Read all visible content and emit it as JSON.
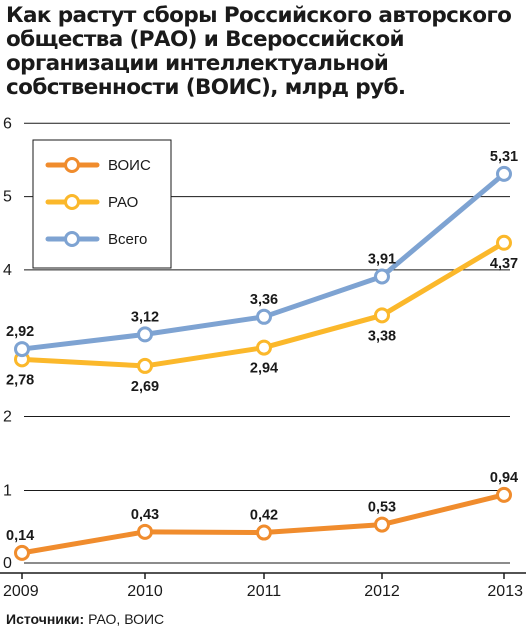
{
  "chart_data": {
    "type": "line",
    "title": "Как растут сборы Российского авторского общества (РАО) и Всероссийской организации интеллектуальной собственности (ВОИС), млрд руб.",
    "x": [
      "2009",
      "2010",
      "2011",
      "2012",
      "2013"
    ],
    "ylim": [
      0,
      6
    ],
    "yticks": [
      "0",
      "1",
      "2",
      "4",
      "5",
      "6"
    ],
    "axis_break": true,
    "grid": true,
    "legend_position": "top-left",
    "series": [
      {
        "name": "ВОИС",
        "color": "#f08c2d",
        "values": [
          0.14,
          0.43,
          0.42,
          0.53,
          0.94
        ],
        "labels": [
          "0,14",
          "0,43",
          "0,42",
          "0,53",
          "0,94"
        ]
      },
      {
        "name": "РАО",
        "color": "#fbb82b",
        "values": [
          2.78,
          2.69,
          2.94,
          3.38,
          4.37
        ],
        "labels": [
          "2,78",
          "2,69",
          "2,94",
          "3,38",
          "4,37"
        ]
      },
      {
        "name": "Всего",
        "color": "#7ea3d2",
        "values": [
          2.92,
          3.12,
          3.36,
          3.91,
          5.31
        ],
        "labels": [
          "2,92",
          "3,12",
          "3,36",
          "3,91",
          "5,31"
        ]
      }
    ]
  },
  "source": {
    "label": "Источники:",
    "value": "РАО, ВОИС"
  }
}
